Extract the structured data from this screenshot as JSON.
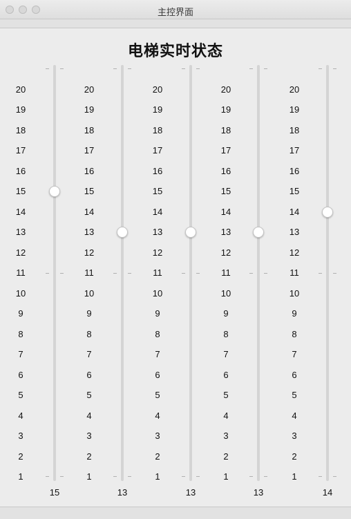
{
  "window": {
    "title": "主控界面"
  },
  "page": {
    "title": "电梯实时状态"
  },
  "floors": [
    "20",
    "19",
    "18",
    "17",
    "16",
    "15",
    "14",
    "13",
    "12",
    "11",
    "10",
    "9",
    "8",
    "7",
    "6",
    "5",
    "4",
    "3",
    "2",
    "1"
  ],
  "floor_range": {
    "min": 1,
    "max": 20
  },
  "elevators": [
    {
      "id": 1,
      "floor": 15
    },
    {
      "id": 2,
      "floor": 13
    },
    {
      "id": 3,
      "floor": 13
    },
    {
      "id": 4,
      "floor": 13
    },
    {
      "id": 5,
      "floor": 14
    }
  ]
}
